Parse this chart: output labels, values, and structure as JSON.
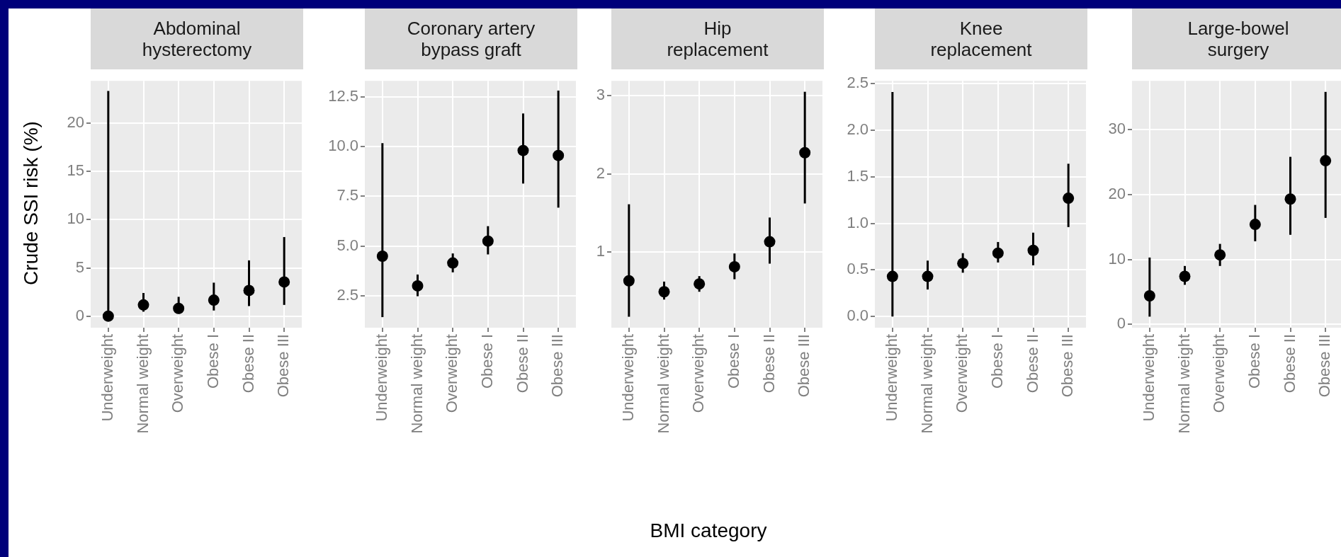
{
  "chart_data": [
    {
      "type": "scatter",
      "title": "Abdominal hysterectomy",
      "ylabel": "Crude SSI risk (%)",
      "categories": [
        "Underweight",
        "Normal weight",
        "Overweight",
        "Obese I",
        "Obese II",
        "Obese III"
      ],
      "color": "#000000",
      "marker": "circle",
      "grid": true,
      "values": [
        0,
        1.16,
        0.8,
        1.66,
        2.66,
        3.54
      ],
      "errors": [
        [
          0,
          23.35
        ],
        [
          0.46,
          2.4
        ],
        [
          0.25,
          2.0
        ],
        [
          0.58,
          3.47
        ],
        [
          1.04,
          5.78
        ],
        [
          1.16,
          8.2
        ]
      ],
      "ylim": [
        -1.2,
        24.4
      ],
      "yticks": [
        0,
        5,
        10,
        15,
        20
      ]
    },
    {
      "type": "scatter",
      "title": "Coronary artery bypass graft",
      "categories": [
        "Underweight",
        "Normal weight",
        "Overweight",
        "Obese I",
        "Obese II",
        "Obese III"
      ],
      "color": "#000000",
      "marker": "circle",
      "grid": true,
      "values": [
        4.49,
        3.0,
        4.15,
        5.25,
        9.8,
        9.55
      ],
      "errors": [
        [
          1.43,
          10.17
        ],
        [
          2.48,
          3.57
        ],
        [
          3.68,
          4.63
        ],
        [
          4.58,
          6.0
        ],
        [
          8.14,
          11.66
        ],
        [
          6.93,
          12.81
        ]
      ],
      "ylim": [
        0.9,
        13.3
      ],
      "yticks": [
        2.5,
        {
          "value": 5,
          "label": "5.0"
        },
        7.5,
        {
          "value": 10,
          "label": "10.0"
        },
        12.5
      ]
    },
    {
      "type": "scatter",
      "title": "Hip replacement",
      "xlabel": "BMI category",
      "categories": [
        "Underweight",
        "Normal weight",
        "Overweight",
        "Obese I",
        "Obese II",
        "Obese III"
      ],
      "color": "#000000",
      "marker": "circle",
      "grid": true,
      "values": [
        0.63,
        0.49,
        0.59,
        0.81,
        1.13,
        2.27
      ],
      "errors": [
        [
          0.17,
          1.61
        ],
        [
          0.39,
          0.62
        ],
        [
          0.49,
          0.69
        ],
        [
          0.65,
          0.98
        ],
        [
          0.85,
          1.44
        ],
        [
          1.62,
          3.05
        ]
      ],
      "ylim": [
        0.03,
        3.19
      ],
      "yticks": [
        1,
        2,
        3
      ]
    },
    {
      "type": "scatter",
      "title": "Knee replacement",
      "categories": [
        "Underweight",
        "Normal weight",
        "Overweight",
        "Obese I",
        "Obese II",
        "Obese III"
      ],
      "color": "#000000",
      "marker": "circle",
      "grid": true,
      "values": [
        0.43,
        0.43,
        0.57,
        0.68,
        0.71,
        1.27
      ],
      "errors": [
        [
          0,
          2.41
        ],
        [
          0.29,
          0.6
        ],
        [
          0.47,
          0.68
        ],
        [
          0.58,
          0.8
        ],
        [
          0.55,
          0.9
        ],
        [
          0.96,
          1.64
        ]
      ],
      "ylim": [
        -0.12,
        2.53
      ],
      "yticks": [
        {
          "value": 0,
          "label": "0.0"
        },
        0.5,
        {
          "value": 1,
          "label": "1.0"
        },
        1.5,
        {
          "value": 2,
          "label": "2.0"
        },
        2.5
      ]
    },
    {
      "type": "scatter",
      "title": "Large-bowel surgery",
      "categories": [
        "Underweight",
        "Normal weight",
        "Overweight",
        "Obese I",
        "Obese II",
        "Obese III"
      ],
      "color": "#000000",
      "marker": "circle",
      "grid": true,
      "values": [
        4.4,
        7.4,
        10.7,
        15.4,
        19.3,
        25.2
      ],
      "errors": [
        [
          1.2,
          10.3
        ],
        [
          6.1,
          9.0
        ],
        [
          9.0,
          12.4
        ],
        [
          12.8,
          18.4
        ],
        [
          13.8,
          25.8
        ],
        [
          16.4,
          35.8
        ]
      ],
      "ylim": [
        -0.5,
        37.5
      ],
      "yticks": [
        0,
        10,
        20,
        30
      ]
    }
  ]
}
